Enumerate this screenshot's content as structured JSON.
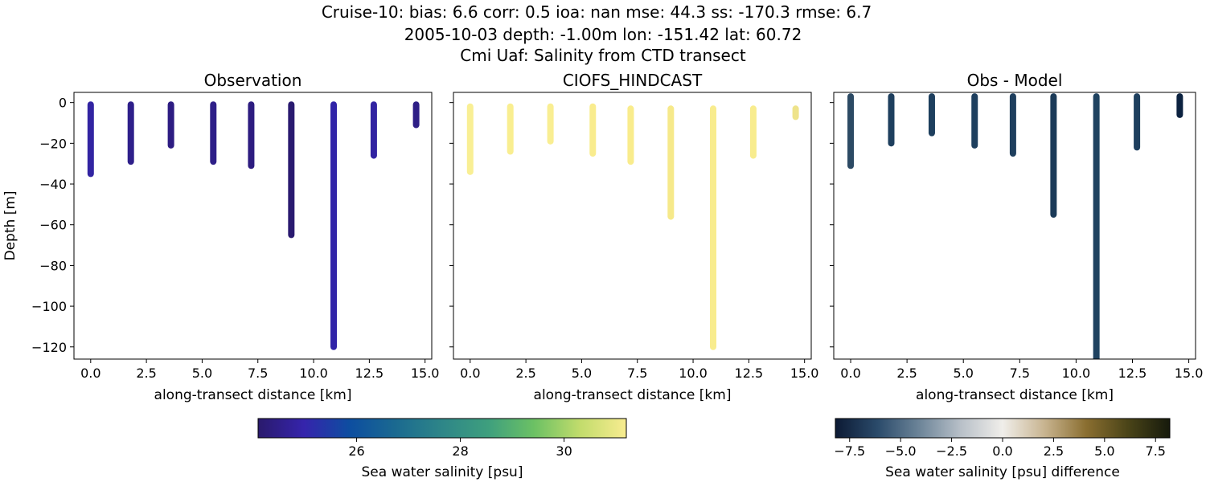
{
  "figure": {
    "title_lines": [
      "Cruise-10: bias: 6.6  corr: 0.5  ioa: nan  mse: 44.3  ss: -170.3  rmse: 6.7",
      "2005-10-03 depth: -1.00m lon: -151.42 lat: 60.72",
      "Cmi Uaf: Salinity from CTD transect"
    ]
  },
  "chart_data": [
    {
      "type": "scatter",
      "title": "Observation",
      "xlabel": "along-transect distance [km]",
      "ylabel": "Depth [m]",
      "xlim": [
        -0.75,
        15.3
      ],
      "ylim": [
        -126,
        5
      ],
      "xticks": [
        "0.0",
        "2.5",
        "5.0",
        "7.5",
        "10.0",
        "12.5",
        "15.0"
      ],
      "yticks": [
        "0",
        "−20",
        "−40",
        "−60",
        "−80",
        "−100",
        "−120"
      ],
      "colormap": "thermal",
      "profiles": [
        {
          "x": 0.0,
          "top": -1,
          "bottom": -35,
          "color": "#3224a2"
        },
        {
          "x": 1.8,
          "top": -1,
          "bottom": -29,
          "color": "#2e1f8a"
        },
        {
          "x": 3.6,
          "top": -1,
          "bottom": -21,
          "color": "#2d1c82"
        },
        {
          "x": 5.5,
          "top": -1,
          "bottom": -29,
          "color": "#2e1f88"
        },
        {
          "x": 7.2,
          "top": -1,
          "bottom": -31,
          "color": "#2d1c80"
        },
        {
          "x": 9.0,
          "top": -1,
          "bottom": -65,
          "color": "#2a1a70"
        },
        {
          "x": 10.9,
          "top": -1,
          "bottom": -120,
          "color": "#3124a8"
        },
        {
          "x": 12.7,
          "top": -1,
          "bottom": -26,
          "color": "#3224a2"
        },
        {
          "x": 14.6,
          "top": -1,
          "bottom": -11,
          "color": "#2e1e86"
        }
      ]
    },
    {
      "type": "scatter",
      "title": "CIOFS_HINDCAST",
      "xlabel": "along-transect distance [km]",
      "ylabel": "",
      "xlim": [
        -0.75,
        15.3
      ],
      "ylim": [
        -126,
        5
      ],
      "xticks": [
        "0.0",
        "2.5",
        "5.0",
        "7.5",
        "10.0",
        "12.5",
        "15.0"
      ],
      "yticks": [],
      "colormap": "thermal",
      "profiles": [
        {
          "x": 0.0,
          "top": -2,
          "bottom": -34,
          "color": "#f9ef94"
        },
        {
          "x": 1.8,
          "top": -2,
          "bottom": -24,
          "color": "#f9ee90"
        },
        {
          "x": 3.6,
          "top": -2,
          "bottom": -19,
          "color": "#f9ee92"
        },
        {
          "x": 5.5,
          "top": -2,
          "bottom": -25,
          "color": "#f9ec8e"
        },
        {
          "x": 7.2,
          "top": -3,
          "bottom": -29,
          "color": "#f9ec8c"
        },
        {
          "x": 9.0,
          "top": -3,
          "bottom": -56,
          "color": "#f6e98a"
        },
        {
          "x": 10.9,
          "top": -3,
          "bottom": -120,
          "color": "#f8ec8e"
        },
        {
          "x": 12.7,
          "top": -3,
          "bottom": -26,
          "color": "#f8ec8e"
        },
        {
          "x": 14.6,
          "top": -3,
          "bottom": -7,
          "color": "#eee38a"
        }
      ]
    },
    {
      "type": "scatter",
      "title": "Obs - Model",
      "xlabel": "along-transect distance [km]",
      "ylabel": "",
      "xlim": [
        -0.75,
        15.3
      ],
      "ylim": [
        -126,
        5
      ],
      "xticks": [
        "0.0",
        "2.5",
        "5.0",
        "7.5",
        "10.0",
        "12.5",
        "15.0"
      ],
      "yticks": [],
      "colormap": "diff",
      "profiles": [
        {
          "x": 0.0,
          "top": 3,
          "bottom": -31,
          "color": "#2c4a64"
        },
        {
          "x": 1.8,
          "top": 3,
          "bottom": -20,
          "color": "#1e3f5e"
        },
        {
          "x": 3.6,
          "top": 3,
          "bottom": -15,
          "color": "#1e3f5e"
        },
        {
          "x": 5.5,
          "top": 3,
          "bottom": -21,
          "color": "#1e3f5e"
        },
        {
          "x": 7.2,
          "top": 3,
          "bottom": -25,
          "color": "#1e3f5e"
        },
        {
          "x": 9.0,
          "top": 3,
          "bottom": -55,
          "color": "#1b3a58"
        },
        {
          "x": 10.9,
          "top": 3,
          "bottom": -126,
          "color": "#1f4260"
        },
        {
          "x": 12.7,
          "top": 3,
          "bottom": -22,
          "color": "#1e3f5e"
        },
        {
          "x": 14.6,
          "top": 3,
          "bottom": -6,
          "color": "#0c2240"
        }
      ]
    }
  ],
  "colorbars": [
    {
      "label": "Sea water salinity [psu]",
      "range": [
        24.1,
        31.2
      ],
      "ticks": [
        26,
        28,
        30
      ],
      "tick_labels": [
        "26",
        "28",
        "30"
      ],
      "colors": [
        "#2a1a6c",
        "#3524ac",
        "#0d4ea0",
        "#1b6a90",
        "#2e8688",
        "#3e9f7e",
        "#6cc164",
        "#c2dc6c",
        "#f8ec90"
      ]
    },
    {
      "label": "Sea water salinity [psu] difference",
      "range": [
        -8.2,
        8.2
      ],
      "ticks": [
        -7.5,
        -5,
        -2.5,
        0,
        2.5,
        5,
        7.5
      ],
      "tick_labels": [
        "−7.5",
        "−5.0",
        "−2.5",
        "0.0",
        "2.5",
        "5.0",
        "7.5"
      ],
      "colors": [
        "#0c1a34",
        "#2a4a6a",
        "#6c8498",
        "#b8c0c8",
        "#f0eeea",
        "#c8b490",
        "#8a6e30",
        "#4a4418",
        "#161a0c"
      ]
    }
  ]
}
